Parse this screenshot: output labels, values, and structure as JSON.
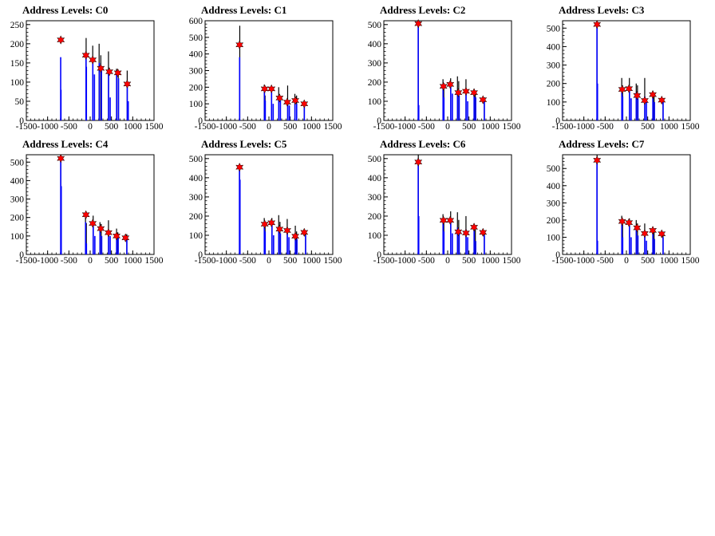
{
  "page": {
    "background": "#ffffff"
  },
  "colors": {
    "histogram": "#000000",
    "histogram_fill": "#0000ff",
    "marker": "#ff0000",
    "marker_edge": "#000000"
  },
  "chart_data": [
    {
      "type": "bar",
      "title": "Address Levels: C0",
      "xlim": [
        -1500,
        1500
      ],
      "ylim": [
        0,
        260
      ],
      "xticks": [
        -1500,
        -1000,
        -500,
        0,
        500,
        1000,
        1500
      ],
      "xtick_labels": [
        "-1500",
        "-1000",
        "-500",
        "0",
        "500",
        "1000",
        "1500"
      ],
      "yticks": [
        0,
        50,
        100,
        150,
        200,
        250
      ],
      "ytick_labels": [
        "0",
        "50",
        "100",
        "150",
        "200",
        "250"
      ],
      "black_peaks": [
        [
          -700,
          0
        ],
        [
          -690,
          60
        ],
        [
          -680,
          0
        ],
        [
          -100,
          40
        ],
        [
          -95,
          215
        ],
        [
          60,
          195
        ],
        [
          210,
          200
        ],
        [
          250,
          170
        ],
        [
          430,
          180
        ],
        [
          620,
          135
        ],
        [
          660,
          130
        ],
        [
          870,
          130
        ],
        [
          900,
          0
        ]
      ],
      "blue_peaks": [
        [
          -693,
          165
        ],
        [
          -686,
          80
        ],
        [
          -97,
          170
        ],
        [
          -89,
          140
        ],
        [
          62,
          160
        ],
        [
          100,
          120
        ],
        [
          215,
          150
        ],
        [
          265,
          130
        ],
        [
          432,
          130
        ],
        [
          470,
          60
        ],
        [
          622,
          125
        ],
        [
          666,
          110
        ],
        [
          872,
          95
        ],
        [
          894,
          50
        ]
      ],
      "markers": [
        [
          -690,
          210
        ],
        [
          -100,
          170
        ],
        [
          60,
          158
        ],
        [
          250,
          136
        ],
        [
          450,
          127
        ],
        [
          650,
          124
        ],
        [
          870,
          95
        ]
      ]
    },
    {
      "type": "bar",
      "title": "Address Levels: C1",
      "xlim": [
        -1500,
        1500
      ],
      "ylim": [
        0,
        600
      ],
      "xticks": [
        -1500,
        -1000,
        -500,
        0,
        500,
        1000,
        1500
      ],
      "xtick_labels": [
        "-1500",
        "-1000",
        "-500",
        "0",
        "500",
        "1000",
        "1500"
      ],
      "yticks": [
        0,
        100,
        200,
        300,
        400,
        500,
        600
      ],
      "ytick_labels": [
        "0",
        "100",
        "200",
        "300",
        "400",
        "500",
        "600"
      ],
      "black_peaks": [
        [
          -685,
          570
        ],
        [
          -110,
          215
        ],
        [
          -90,
          150
        ],
        [
          60,
          210
        ],
        [
          230,
          200
        ],
        [
          440,
          210
        ],
        [
          610,
          160
        ],
        [
          650,
          150
        ],
        [
          830,
          105
        ]
      ],
      "blue_peaks": [
        [
          -688,
          380
        ],
        [
          -105,
          190
        ],
        [
          -86,
          120
        ],
        [
          62,
          170
        ],
        [
          100,
          100
        ],
        [
          232,
          140
        ],
        [
          270,
          120
        ],
        [
          442,
          120
        ],
        [
          480,
          90
        ],
        [
          612,
          120
        ],
        [
          652,
          100
        ],
        [
          832,
          95
        ]
      ],
      "markers": [
        [
          -690,
          455
        ],
        [
          -100,
          190
        ],
        [
          60,
          190
        ],
        [
          250,
          135
        ],
        [
          430,
          110
        ],
        [
          620,
          120
        ],
        [
          830,
          100
        ]
      ]
    },
    {
      "type": "bar",
      "title": "Address Levels: C2",
      "xlim": [
        -1500,
        1500
      ],
      "ylim": [
        0,
        520
      ],
      "xticks": [
        -1500,
        -1000,
        -500,
        0,
        500,
        1000,
        1500
      ],
      "xtick_labels": [
        "-1500",
        "-1000",
        "-500",
        "0",
        "500",
        "1000",
        "1500"
      ],
      "yticks": [
        0,
        100,
        200,
        300,
        400,
        500
      ],
      "ytick_labels": [
        "0",
        "100",
        "200",
        "300",
        "400",
        "500"
      ],
      "black_peaks": [
        [
          -690,
          520
        ],
        [
          -110,
          215
        ],
        [
          -90,
          195
        ],
        [
          70,
          220
        ],
        [
          230,
          230
        ],
        [
          260,
          205
        ],
        [
          430,
          215
        ],
        [
          620,
          165
        ],
        [
          650,
          150
        ],
        [
          860,
          120
        ]
      ],
      "blue_peaks": [
        [
          -692,
          500
        ],
        [
          -680,
          80
        ],
        [
          -108,
          175
        ],
        [
          -88,
          120
        ],
        [
          72,
          180
        ],
        [
          110,
          140
        ],
        [
          232,
          150
        ],
        [
          270,
          130
        ],
        [
          432,
          150
        ],
        [
          470,
          100
        ],
        [
          622,
          140
        ],
        [
          658,
          120
        ],
        [
          862,
          110
        ]
      ],
      "markers": [
        [
          -690,
          505
        ],
        [
          -100,
          178
        ],
        [
          60,
          188
        ],
        [
          250,
          145
        ],
        [
          430,
          152
        ],
        [
          620,
          145
        ],
        [
          830,
          108
        ]
      ]
    },
    {
      "type": "bar",
      "title": "Address Levels: C3",
      "xlim": [
        -1500,
        1500
      ],
      "ylim": [
        0,
        540
      ],
      "xticks": [
        -1500,
        -1000,
        -500,
        0,
        500,
        1000,
        1500
      ],
      "xtick_labels": [
        "-1500",
        "-1000",
        "-500",
        "0",
        "500",
        "1000",
        "1500"
      ],
      "yticks": [
        0,
        100,
        200,
        300,
        400,
        500
      ],
      "ytick_labels": [
        "0",
        "100",
        "200",
        "300",
        "400",
        "500"
      ],
      "black_peaks": [
        [
          -690,
          540
        ],
        [
          -110,
          230
        ],
        [
          -90,
          190
        ],
        [
          70,
          230
        ],
        [
          230,
          200
        ],
        [
          260,
          190
        ],
        [
          430,
          230
        ],
        [
          620,
          160
        ],
        [
          650,
          130
        ],
        [
          860,
          110
        ]
      ],
      "blue_peaks": [
        [
          -692,
          520
        ],
        [
          -680,
          200
        ],
        [
          -108,
          175
        ],
        [
          -88,
          130
        ],
        [
          72,
          170
        ],
        [
          110,
          120
        ],
        [
          232,
          150
        ],
        [
          270,
          120
        ],
        [
          432,
          130
        ],
        [
          470,
          100
        ],
        [
          622,
          140
        ],
        [
          658,
          100
        ],
        [
          862,
          100
        ]
      ],
      "markers": [
        [
          -690,
          520
        ],
        [
          -100,
          168
        ],
        [
          60,
          172
        ],
        [
          250,
          135
        ],
        [
          430,
          108
        ],
        [
          620,
          140
        ],
        [
          830,
          110
        ]
      ]
    },
    {
      "type": "bar",
      "title": "Address Levels: C4",
      "xlim": [
        -1500,
        1500
      ],
      "ylim": [
        0,
        540
      ],
      "xticks": [
        -1500,
        -1000,
        -500,
        0,
        500,
        1000,
        1500
      ],
      "xtick_labels": [
        "-1500",
        "-1000",
        "-500",
        "0",
        "500",
        "1000",
        "1500"
      ],
      "yticks": [
        0,
        100,
        200,
        300,
        400,
        500
      ],
      "ytick_labels": [
        "0",
        "100",
        "200",
        "300",
        "400",
        "500"
      ],
      "black_peaks": [
        [
          -690,
          540
        ],
        [
          -110,
          225
        ],
        [
          -90,
          170
        ],
        [
          70,
          210
        ],
        [
          230,
          175
        ],
        [
          260,
          165
        ],
        [
          430,
          185
        ],
        [
          620,
          140
        ],
        [
          650,
          120
        ],
        [
          860,
          110
        ]
      ],
      "blue_peaks": [
        [
          -692,
          520
        ],
        [
          -680,
          370
        ],
        [
          -108,
          175
        ],
        [
          -88,
          60
        ],
        [
          72,
          160
        ],
        [
          110,
          100
        ],
        [
          232,
          140
        ],
        [
          270,
          100
        ],
        [
          432,
          130
        ],
        [
          470,
          100
        ],
        [
          622,
          110
        ],
        [
          658,
          90
        ],
        [
          862,
          100
        ]
      ],
      "markers": [
        [
          -690,
          520
        ],
        [
          -100,
          215
        ],
        [
          60,
          168
        ],
        [
          250,
          140
        ],
        [
          430,
          118
        ],
        [
          620,
          100
        ],
        [
          830,
          90
        ]
      ]
    },
    {
      "type": "bar",
      "title": "Address Levels: C5",
      "xlim": [
        -1500,
        1500
      ],
      "ylim": [
        0,
        520
      ],
      "xticks": [
        -1500,
        -1000,
        -500,
        0,
        500,
        1000,
        1500
      ],
      "xtick_labels": [
        "-1500",
        "-1000",
        "-500",
        "0",
        "500",
        "1000",
        "1500"
      ],
      "yticks": [
        0,
        100,
        200,
        300,
        400,
        500
      ],
      "ytick_labels": [
        "0",
        "100",
        "200",
        "300",
        "400",
        "500"
      ],
      "black_peaks": [
        [
          -690,
          470
        ],
        [
          -110,
          190
        ],
        [
          -90,
          150
        ],
        [
          70,
          190
        ],
        [
          230,
          205
        ],
        [
          260,
          170
        ],
        [
          430,
          185
        ],
        [
          620,
          150
        ],
        [
          650,
          120
        ],
        [
          860,
          115
        ]
      ],
      "blue_peaks": [
        [
          -692,
          450
        ],
        [
          -680,
          390
        ],
        [
          -108,
          160
        ],
        [
          -88,
          120
        ],
        [
          72,
          170
        ],
        [
          110,
          100
        ],
        [
          232,
          140
        ],
        [
          270,
          110
        ],
        [
          432,
          120
        ],
        [
          470,
          90
        ],
        [
          622,
          100
        ],
        [
          658,
          80
        ],
        [
          862,
          100
        ]
      ],
      "markers": [
        [
          -690,
          455
        ],
        [
          -100,
          158
        ],
        [
          60,
          165
        ],
        [
          250,
          132
        ],
        [
          430,
          125
        ],
        [
          620,
          95
        ],
        [
          830,
          115
        ]
      ]
    },
    {
      "type": "bar",
      "title": "Address Levels: C6",
      "xlim": [
        -1500,
        1500
      ],
      "ylim": [
        0,
        520
      ],
      "xticks": [
        -1500,
        -1000,
        -500,
        0,
        500,
        1000,
        1500
      ],
      "xtick_labels": [
        "-1500",
        "-1000",
        "-500",
        "0",
        "500",
        "1000",
        "1500"
      ],
      "yticks": [
        0,
        100,
        200,
        300,
        400,
        500
      ],
      "ytick_labels": [
        "0",
        "100",
        "200",
        "300",
        "400",
        "500"
      ],
      "black_peaks": [
        [
          -690,
          520
        ],
        [
          -110,
          210
        ],
        [
          -90,
          180
        ],
        [
          70,
          225
        ],
        [
          230,
          220
        ],
        [
          260,
          180
        ],
        [
          430,
          200
        ],
        [
          620,
          160
        ],
        [
          650,
          130
        ],
        [
          860,
          115
        ]
      ],
      "blue_peaks": [
        [
          -692,
          500
        ],
        [
          -680,
          200
        ],
        [
          -108,
          175
        ],
        [
          -88,
          120
        ],
        [
          72,
          170
        ],
        [
          110,
          110
        ],
        [
          232,
          140
        ],
        [
          270,
          110
        ],
        [
          432,
          130
        ],
        [
          470,
          90
        ],
        [
          622,
          140
        ],
        [
          658,
          70
        ],
        [
          862,
          100
        ]
      ],
      "markers": [
        [
          -690,
          482
        ],
        [
          -100,
          178
        ],
        [
          60,
          178
        ],
        [
          250,
          118
        ],
        [
          430,
          112
        ],
        [
          620,
          142
        ],
        [
          830,
          115
        ]
      ]
    },
    {
      "type": "bar",
      "title": "Address Levels: C7",
      "xlim": [
        -1500,
        1500
      ],
      "ylim": [
        0,
        580
      ],
      "xticks": [
        -1500,
        -1000,
        -500,
        0,
        500,
        1000,
        1500
      ],
      "xtick_labels": [
        "-1500",
        "-1000",
        "-500",
        "0",
        "500",
        "1000",
        "1500"
      ],
      "yticks": [
        0,
        100,
        200,
        300,
        400,
        500
      ],
      "ytick_labels": [
        "0",
        "100",
        "200",
        "300",
        "400",
        "500"
      ],
      "black_peaks": [
        [
          -690,
          580
        ],
        [
          -110,
          225
        ],
        [
          -90,
          195
        ],
        [
          70,
          210
        ],
        [
          230,
          200
        ],
        [
          260,
          180
        ],
        [
          430,
          180
        ],
        [
          620,
          160
        ],
        [
          650,
          130
        ],
        [
          860,
          130
        ]
      ],
      "blue_peaks": [
        [
          -692,
          560
        ],
        [
          -680,
          80
        ],
        [
          -108,
          190
        ],
        [
          -88,
          100
        ],
        [
          72,
          170
        ],
        [
          110,
          100
        ],
        [
          232,
          150
        ],
        [
          270,
          110
        ],
        [
          432,
          120
        ],
        [
          470,
          80
        ],
        [
          622,
          130
        ],
        [
          658,
          90
        ],
        [
          862,
          100
        ]
      ],
      "markers": [
        [
          -690,
          548
        ],
        [
          -100,
          192
        ],
        [
          60,
          185
        ],
        [
          250,
          155
        ],
        [
          430,
          122
        ],
        [
          620,
          140
        ],
        [
          830,
          120
        ]
      ]
    }
  ]
}
